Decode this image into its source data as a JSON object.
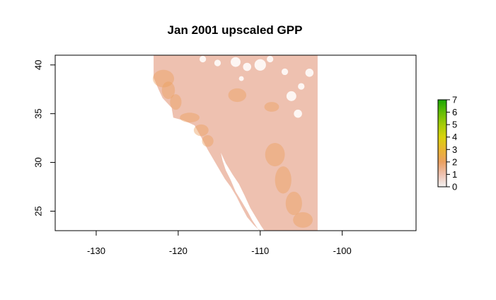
{
  "title": "Jan 2001 upscaled GPP",
  "chart_data": {
    "type": "heatmap",
    "title": "Jan 2001 upscaled GPP",
    "xlabel": "",
    "ylabel": "",
    "xlim": [
      -135,
      -91
    ],
    "ylim": [
      23,
      41
    ],
    "x_ticks": [
      -130,
      -120,
      -110,
      -100
    ],
    "y_ticks": [
      25,
      30,
      35,
      40
    ],
    "x_tick_labels": [
      "-130",
      "-120",
      "-110",
      "-100"
    ],
    "y_tick_labels": [
      "25",
      "30",
      "35",
      "40"
    ],
    "data_extent": {
      "lon": [
        -123,
        -103
      ],
      "lat": [
        23,
        41
      ]
    },
    "legend": {
      "placement": "right",
      "min": 0,
      "max": 7,
      "ticks": [
        "0",
        "1",
        "2",
        "3",
        "4",
        "5",
        "6",
        "7"
      ],
      "colors": [
        "#f2f2f2",
        "#eec1b0",
        "#eaa060",
        "#e9b531",
        "#d9d20c",
        "#a4cc09",
        "#63bd06",
        "#1aa503"
      ]
    },
    "dominant_value_range": [
      1,
      2
    ]
  }
}
